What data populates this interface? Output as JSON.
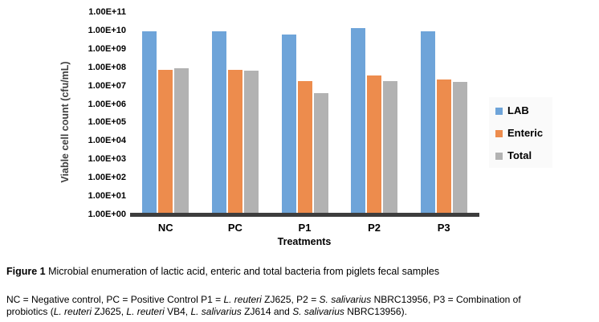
{
  "chart_data": {
    "type": "bar",
    "title": "",
    "categories": [
      "NC",
      "PC",
      "P1",
      "P2",
      "P3"
    ],
    "series": [
      {
        "name": "LAB",
        "color": "#6EA4D9",
        "values": [
          9000000000.0,
          9000000000.0,
          6000000000.0,
          13000000000.0,
          9000000000.0
        ]
      },
      {
        "name": "Enteric",
        "color": "#ED8C4D",
        "values": [
          70000000.0,
          70000000.0,
          17000000.0,
          36000000.0,
          22000000.0
        ]
      },
      {
        "name": "Total",
        "color": "#B2B2B2",
        "values": [
          85000000.0,
          65000000.0,
          4000000.0,
          17000000.0,
          16000000.0
        ]
      }
    ],
    "xlabel": "Treatments",
    "ylabel": "Viable cell count (cfu/mL)",
    "yscale": "log",
    "ylim": [
      1,
      100000000000.0
    ],
    "yticks": [
      "1.00E+11",
      "1.00E+10",
      "1.00E+09",
      "1.00E+08",
      "1.00E+07",
      "1.00E+06",
      "1.00E+05",
      "1.00E+04",
      "1.00E+03",
      "1.00E+02",
      "1.00E+01",
      "1.00E+00"
    ],
    "legend_position": "right",
    "legend_labels": [
      "LAB",
      "Enteric",
      "Total"
    ],
    "grid": false
  },
  "figure": {
    "caption_segments": [
      {
        "t": "Figure 1 ",
        "b": true
      },
      {
        "t": "Microbial enumeration of lactic acid, enteric and total bacteria from piglets fecal samples"
      }
    ],
    "note_lines": [
      [
        {
          "t": "NC = Negative control, PC = Positive Control P1 = "
        },
        {
          "t": "L. reuteri",
          "i": true
        },
        {
          "t": " ZJ625, P2 = "
        },
        {
          "t": "S. salivarius",
          "i": true
        },
        {
          "t": " NBRC13956, P3 = Combination of"
        }
      ],
      [
        {
          "t": "probiotics ("
        },
        {
          "t": "L. reuteri",
          "i": true
        },
        {
          "t": " ZJ625, "
        },
        {
          "t": "L. reuteri",
          "i": true
        },
        {
          "t": " VB4, "
        },
        {
          "t": "L. salivarius",
          "i": true
        },
        {
          "t": " ZJ614 and "
        },
        {
          "t": "S. salivarius",
          "i": true
        },
        {
          "t": " NBRC13956)."
        }
      ]
    ]
  },
  "colors": {
    "axis_line": "#3D3D3D",
    "tick_text": "#000000",
    "axis_title_text": "#3F3F3F",
    "legend_background": "#FAFAFA"
  }
}
